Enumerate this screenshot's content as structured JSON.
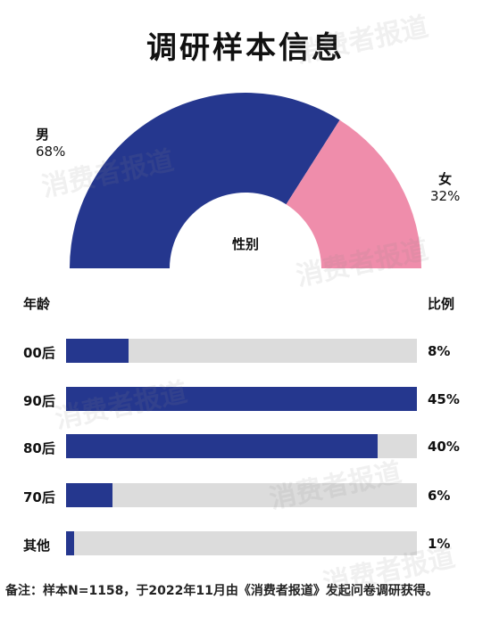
{
  "title": "调研样本信息",
  "watermark": "消费者报道",
  "chart_data": [
    {
      "type": "pie",
      "variant": "semi-donut",
      "center_label": "性别",
      "slices": [
        {
          "label": "男",
          "value": 68,
          "display": "68%",
          "color": "#25378e"
        },
        {
          "label": "女",
          "value": 32,
          "display": "32%",
          "color": "#ef8dab"
        }
      ]
    },
    {
      "type": "bar",
      "orientation": "horizontal",
      "category_header": "年龄",
      "value_header": "比例",
      "max": 45,
      "categories": [
        "00后",
        "90后",
        "80后",
        "70后",
        "其他"
      ],
      "values": [
        8,
        45,
        40,
        6,
        1
      ],
      "value_labels": [
        "8%",
        "45%",
        "40%",
        "6%",
        "1%"
      ],
      "bar_color": "#25378e",
      "track_color": "#dcdcdc"
    }
  ],
  "footnote": "备注：样本N=1158，于2022年11月由《消费者报道》发起问卷调研获得。"
}
